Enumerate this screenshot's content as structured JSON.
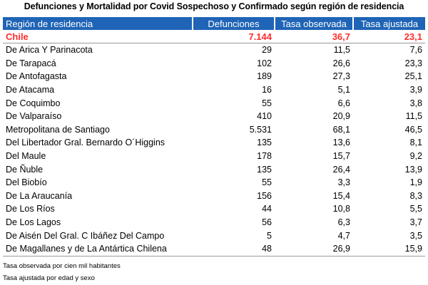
{
  "title": "Defunciones y Mortalidad por Covid Sospechoso y Confirmado  según región de residencia",
  "table": {
    "headers": {
      "region": "Región de residencia",
      "deaths": "Defunciones",
      "observed": "Tasa observada",
      "adjusted": "Tasa ajustada"
    },
    "total": {
      "region": "Chile",
      "deaths": "7.144",
      "observed": "36,7",
      "adjusted": "23,1"
    },
    "rows": [
      {
        "region": "De Arica Y Parinacota",
        "deaths": "29",
        "observed": "11,5",
        "adjusted": "7,6"
      },
      {
        "region": "De Tarapacá",
        "deaths": "102",
        "observed": "26,6",
        "adjusted": "23,3"
      },
      {
        "region": "De Antofagasta",
        "deaths": "189",
        "observed": "27,3",
        "adjusted": "25,1"
      },
      {
        "region": "De Atacama",
        "deaths": "16",
        "observed": "5,1",
        "adjusted": "3,9"
      },
      {
        "region": "De Coquimbo",
        "deaths": "55",
        "observed": "6,6",
        "adjusted": "3,8"
      },
      {
        "region": "De Valparaíso",
        "deaths": "410",
        "observed": "20,9",
        "adjusted": "11,5"
      },
      {
        "region": "Metropolitana de Santiago",
        "deaths": "5.531",
        "observed": "68,1",
        "adjusted": "46,5"
      },
      {
        "region": "Del Libertador Gral. Bernardo O´Higgins",
        "deaths": "135",
        "observed": "13,6",
        "adjusted": "8,1"
      },
      {
        "region": "Del Maule",
        "deaths": "178",
        "observed": "15,7",
        "adjusted": "9,2"
      },
      {
        "region": "De Ñuble",
        "deaths": "135",
        "observed": "26,4",
        "adjusted": "13,9"
      },
      {
        "region": "Del Biobío",
        "deaths": "55",
        "observed": "3,3",
        "adjusted": "1,9"
      },
      {
        "region": "De La Araucanía",
        "deaths": "156",
        "observed": "15,4",
        "adjusted": "8,3"
      },
      {
        "region": "De Los Ríos",
        "deaths": "44",
        "observed": "10,8",
        "adjusted": "5,5"
      },
      {
        "region": "De Los Lagos",
        "deaths": "56",
        "observed": "6,3",
        "adjusted": "3,7"
      },
      {
        "region": "De Aisén Del Gral. C Ibáñez Del Campo",
        "deaths": "5",
        "observed": "4,7",
        "adjusted": "3,5"
      },
      {
        "region": "De Magallanes y de La Antártica Chilena",
        "deaths": "48",
        "observed": "26,9",
        "adjusted": "15,9"
      }
    ]
  },
  "notes": [
    "Tasa observada por cien mil habitantes",
    "Tasa ajustada por edad y sexo"
  ],
  "colors": {
    "header_bg": "#1f64b6",
    "header_text": "#ffffff",
    "total_text": "#ff2d2d"
  }
}
